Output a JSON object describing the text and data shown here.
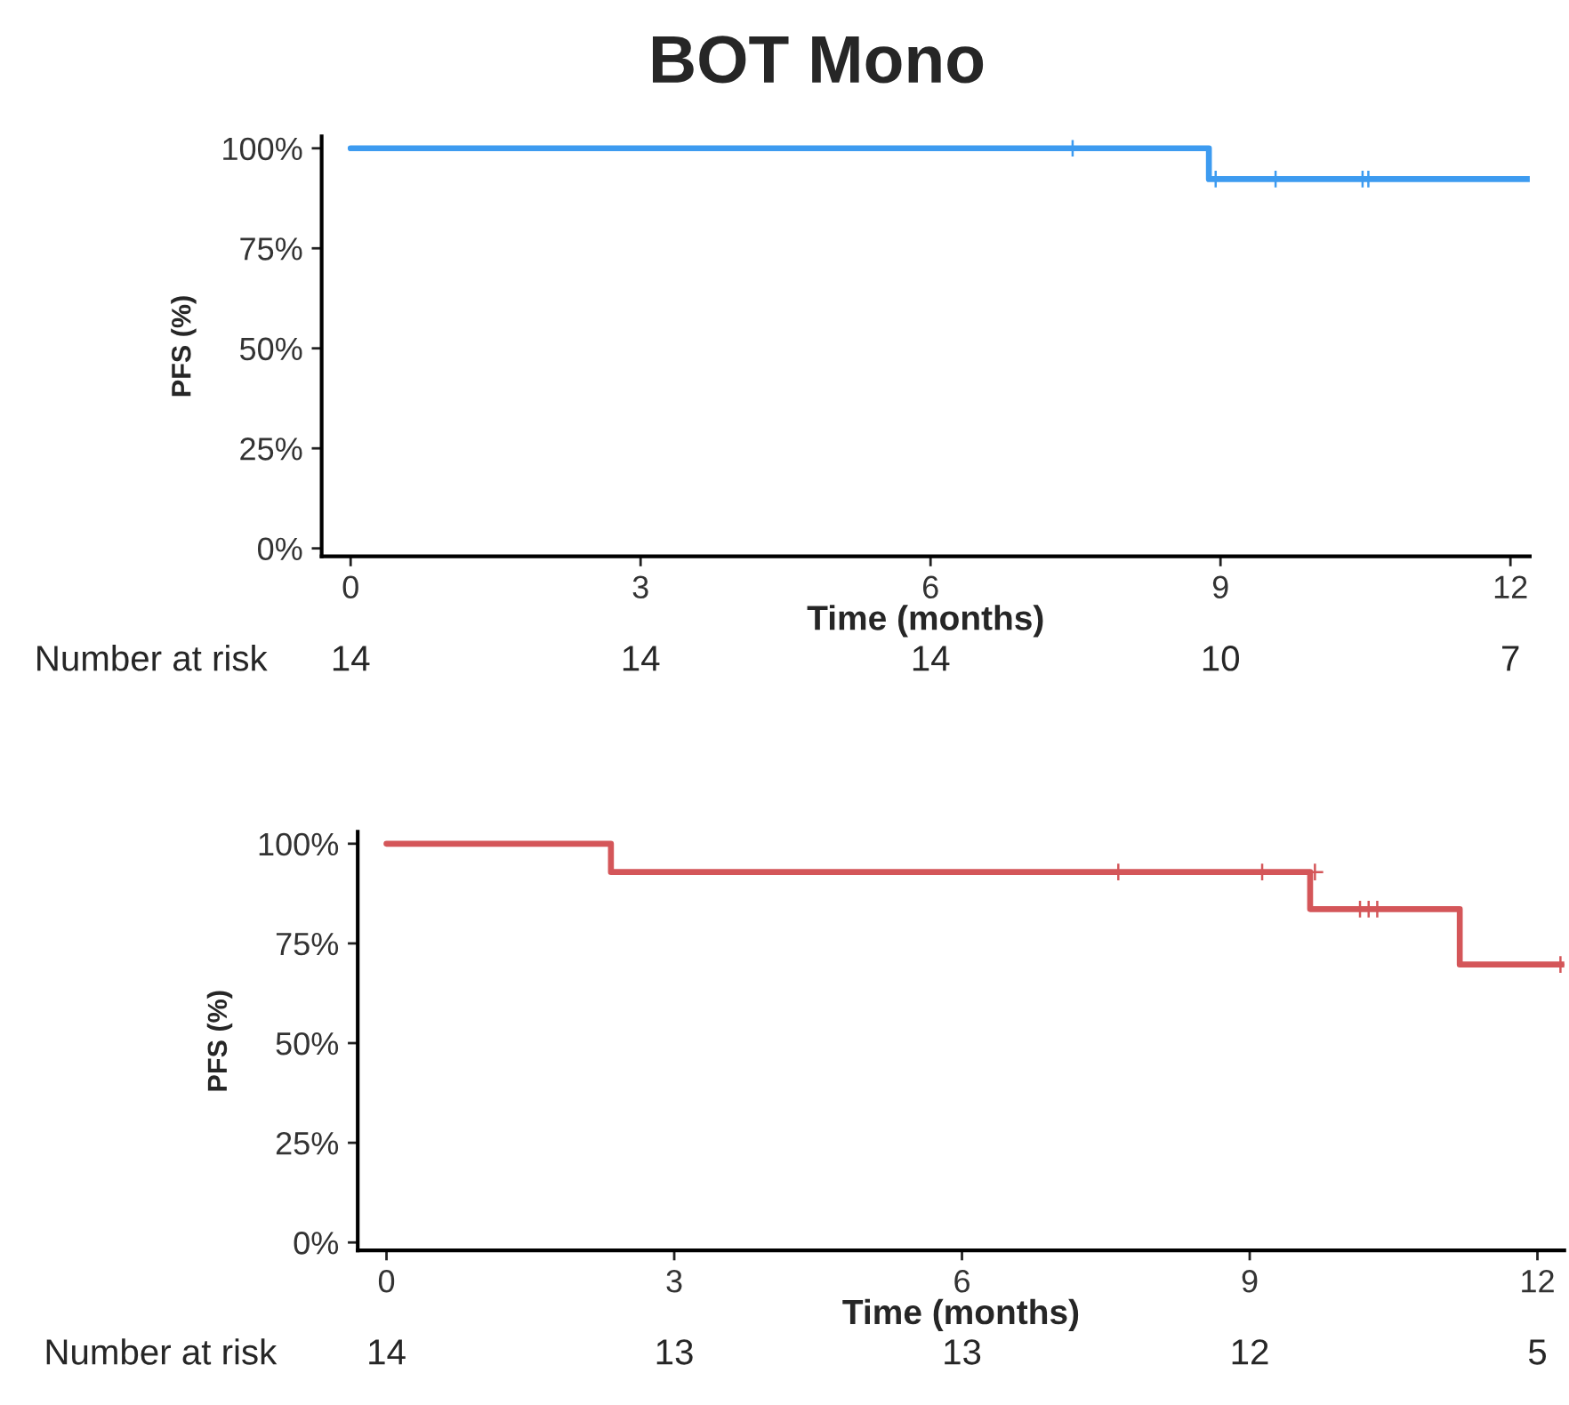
{
  "chart_data": [
    {
      "type": "step",
      "title": "BOT Mono",
      "xlabel": "Time (months)",
      "ylabel": "PFS (%)",
      "series": [
        {
          "color": "#3d9bf0",
          "x": [
            0,
            8.88,
            12.2
          ],
          "values": [
            100,
            92.3,
            92.3
          ]
        },
        {
          "type": "scatter",
          "marker": "cross",
          "color": "#3d9bf0",
          "x": [
            7.47,
            8.95,
            9.57,
            10.47,
            10.53
          ],
          "values": [
            100,
            92.3,
            92.3,
            92.3,
            92.3
          ]
        }
      ],
      "xlim": [
        -0.3,
        12.2
      ],
      "xticks": [
        0,
        3,
        6,
        9,
        12
      ],
      "ylim": [
        -2,
        103
      ],
      "yticks": [
        {
          "value": 0,
          "label": "0%"
        },
        {
          "value": 25,
          "label": "25%"
        },
        {
          "value": 50,
          "label": "50%"
        },
        {
          "value": 75,
          "label": "75%"
        },
        {
          "value": 100,
          "label": "100%"
        }
      ],
      "grid": false,
      "legend": false,
      "annotations": [
        "Number at risk",
        "14",
        "14",
        "14",
        "10",
        "7"
      ]
    },
    {
      "type": "step",
      "xlabel": "Time (months)",
      "ylabel": "PFS (%)",
      "series": [
        {
          "color": "#d45659",
          "x": [
            0,
            2.34,
            9.63,
            11.19,
            12.28
          ],
          "values": [
            100,
            92.9,
            83.6,
            69.7,
            69.7
          ]
        },
        {
          "type": "scatter",
          "marker": "cross",
          "color": "#d45659",
          "x": [
            7.63,
            9.13,
            9.68,
            10.15,
            10.24,
            10.33,
            12.24
          ],
          "values": [
            92.9,
            92.9,
            92.9,
            83.6,
            83.6,
            83.6,
            69.7
          ]
        }
      ],
      "xlim": [
        -0.3,
        12.28
      ],
      "xticks": [
        0,
        3,
        6,
        9,
        12
      ],
      "ylim": [
        -2,
        103
      ],
      "yticks": [
        {
          "value": 0,
          "label": "0%"
        },
        {
          "value": 25,
          "label": "25%"
        },
        {
          "value": 50,
          "label": "50%"
        },
        {
          "value": 75,
          "label": "75%"
        },
        {
          "value": 100,
          "label": "100%"
        }
      ],
      "grid": false,
      "legend": false,
      "annotations": [
        "Number at risk",
        "14",
        "13",
        "13",
        "12",
        "5"
      ]
    }
  ]
}
